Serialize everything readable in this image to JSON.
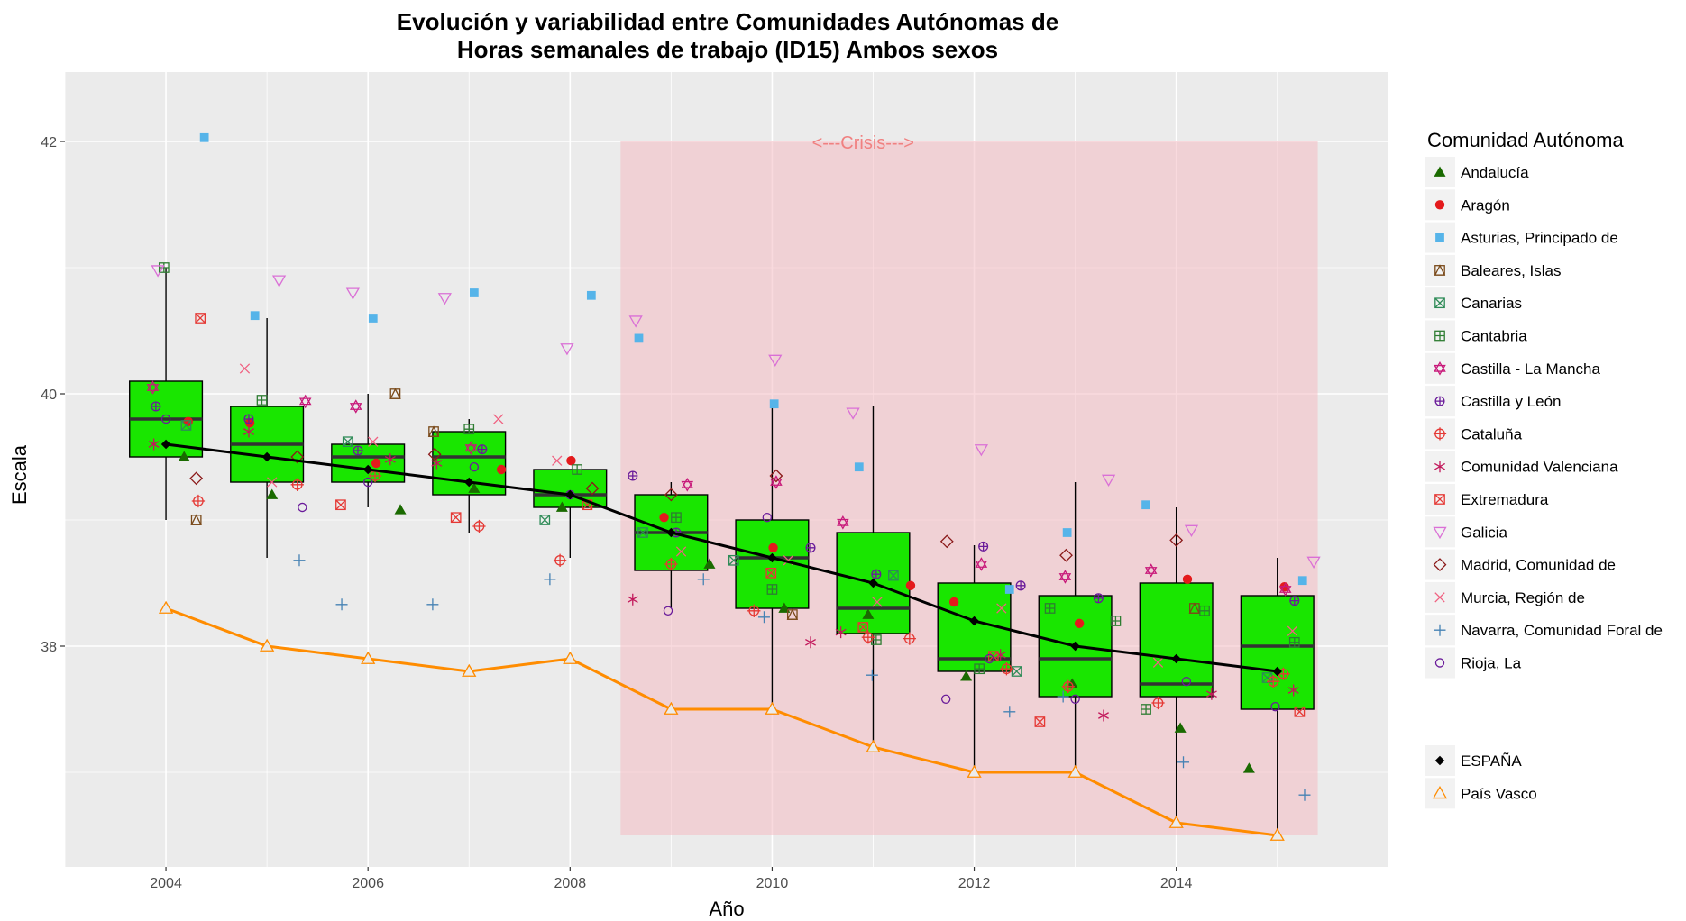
{
  "chart_data": {
    "type": "box",
    "title": "Evolución y variabilidad entre Comunidades Autónomas de",
    "subtitle": "Horas semanales de trabajo (ID15) Ambos sexos",
    "xlabel": "Año",
    "ylabel": "Escala",
    "xlim": [
      2003.0,
      2016.1
    ],
    "ylim": [
      36.25,
      42.55
    ],
    "x_ticks": [
      2004,
      2006,
      2008,
      2010,
      2012,
      2014
    ],
    "y_ticks": [
      38,
      40,
      42
    ],
    "grid": true,
    "legend_position": "right",
    "annotation": {
      "text": "<---Crisis--->",
      "x": 2010.9,
      "y": 42.0,
      "color": "#f08080"
    },
    "crisis_period": {
      "x_start": 2008.5,
      "x_end": 2015.4,
      "y_start": 36.5,
      "y_end": 42.0,
      "color": "#f4bcc2"
    },
    "boxes": [
      {
        "x": 2004,
        "min": 39.0,
        "q1": 39.5,
        "median": 39.8,
        "q3": 40.1,
        "max": 41.0
      },
      {
        "x": 2005,
        "min": 38.7,
        "q1": 39.3,
        "median": 39.6,
        "q3": 39.9,
        "max": 40.6
      },
      {
        "x": 2006,
        "min": 39.1,
        "q1": 39.3,
        "median": 39.5,
        "q3": 39.6,
        "max": 40.0
      },
      {
        "x": 2007,
        "min": 38.9,
        "q1": 39.2,
        "median": 39.5,
        "q3": 39.7,
        "max": 39.8
      },
      {
        "x": 2008,
        "min": 38.7,
        "q1": 39.1,
        "median": 39.2,
        "q3": 39.4,
        "max": 39.4
      },
      {
        "x": 2009,
        "min": 38.3,
        "q1": 38.6,
        "median": 38.9,
        "q3": 39.2,
        "max": 39.3
      },
      {
        "x": 2010,
        "min": 37.5,
        "q1": 38.3,
        "median": 38.7,
        "q3": 39.0,
        "max": 39.9
      },
      {
        "x": 2011,
        "min": 37.2,
        "q1": 38.1,
        "median": 38.3,
        "q3": 38.9,
        "max": 39.9
      },
      {
        "x": 2012,
        "min": 37.0,
        "q1": 37.8,
        "median": 37.9,
        "q3": 38.5,
        "max": 38.8
      },
      {
        "x": 2013,
        "min": 37.0,
        "q1": 37.6,
        "median": 37.9,
        "q3": 38.4,
        "max": 39.3
      },
      {
        "x": 2014,
        "min": 36.6,
        "q1": 37.6,
        "median": 37.7,
        "q3": 38.5,
        "max": 39.1
      },
      {
        "x": 2015,
        "min": 36.5,
        "q1": 37.5,
        "median": 38.0,
        "q3": 38.4,
        "max": 38.7
      }
    ],
    "box_fill": "#19e600",
    "series": [
      {
        "name": "ESPAÑA",
        "color": "#000000",
        "marker": "diamond",
        "x": [
          2004,
          2005,
          2006,
          2007,
          2008,
          2009,
          2010,
          2011,
          2012,
          2013,
          2014,
          2015
        ],
        "y": [
          39.6,
          39.5,
          39.4,
          39.3,
          39.2,
          38.9,
          38.7,
          38.5,
          38.2,
          38.0,
          37.9,
          37.8
        ]
      },
      {
        "name": "País Vasco",
        "color": "#ff8c00",
        "marker": "triangle-open",
        "x": [
          2004,
          2005,
          2006,
          2007,
          2008,
          2009,
          2010,
          2011,
          2012,
          2013,
          2014,
          2015
        ],
        "y": [
          38.3,
          38.0,
          37.9,
          37.8,
          37.9,
          37.5,
          37.5,
          37.2,
          37.0,
          37.0,
          36.6,
          36.5
        ]
      }
    ],
    "regions": [
      {
        "name": "Andalucía",
        "color": "#1a6a00",
        "marker": "triangle-filled",
        "x": [
          2004.18,
          2005.05,
          2006.32,
          2007.05,
          2007.92,
          2009.38,
          2010.12,
          2010.95,
          2011.92,
          2012.97,
          2014.04,
          2014.72
        ],
        "y": [
          39.5,
          39.2,
          39.08,
          39.25,
          39.1,
          38.65,
          38.3,
          38.25,
          37.76,
          37.7,
          37.35,
          37.03
        ]
      },
      {
        "name": "Aragón",
        "color": "#e41a1c",
        "marker": "circle-filled",
        "x": [
          2004.22,
          2004.83,
          2006.08,
          2007.32,
          2008.01,
          2008.93,
          2010.01,
          2011.37,
          2011.8,
          2013.04,
          2014.11,
          2015.07
        ],
        "y": [
          39.78,
          39.77,
          39.45,
          39.4,
          39.47,
          39.02,
          38.78,
          38.48,
          38.35,
          38.18,
          38.53,
          38.47
        ]
      },
      {
        "name": "Asturias, Principado de",
        "color": "#56b4e9",
        "marker": "square-filled",
        "x": [
          2004.38,
          2004.88,
          2006.05,
          2007.05,
          2008.21,
          2008.68,
          2010.02,
          2010.86,
          2012.35,
          2012.92,
          2013.7,
          2015.25
        ],
        "y": [
          42.03,
          40.62,
          40.6,
          40.8,
          40.78,
          40.44,
          39.92,
          39.42,
          38.45,
          38.9,
          39.12,
          38.52
        ]
      },
      {
        "name": "Baleares, Islas",
        "color": "#7a4a1a",
        "marker": "square-triangle",
        "x": [
          2004.3,
          2006.27,
          2006.65,
          2010.2,
          2014.18
        ],
        "y": [
          39.0,
          40.0,
          39.7,
          38.25,
          38.3
        ]
      },
      {
        "name": "Canarias",
        "color": "#2e8b57",
        "marker": "square-x",
        "x": [
          2004.2,
          2005.8,
          2007.75,
          2008.72,
          2009.62,
          2011.2,
          2012.42,
          2014.9
        ],
        "y": [
          39.75,
          39.62,
          39.0,
          38.9,
          38.68,
          38.56,
          37.8,
          37.75
        ]
      },
      {
        "name": "Cantabria",
        "color": "#2e7d32",
        "marker": "square-plus",
        "x": [
          2003.98,
          2004.95,
          2007.0,
          2008.07,
          2009.05,
          2010.0,
          2011.03,
          2012.05,
          2012.75,
          2013.4,
          2013.7,
          2014.28,
          2015.17
        ],
        "y": [
          41.0,
          39.95,
          39.72,
          39.4,
          39.02,
          38.45,
          38.05,
          37.82,
          38.3,
          38.2,
          37.5,
          38.28,
          38.03
        ]
      },
      {
        "name": "Castilla - La Mancha",
        "color": "#c8197a",
        "marker": "star-of-david",
        "x": [
          2003.87,
          2005.38,
          2005.88,
          2007.02,
          2009.16,
          2010.04,
          2010.7,
          2012.07,
          2012.9,
          2013.75,
          2015.08
        ],
        "y": [
          40.05,
          39.94,
          39.9,
          39.57,
          39.28,
          39.3,
          38.98,
          38.65,
          38.55,
          38.6,
          38.45
        ]
      },
      {
        "name": "Castilla y León",
        "color": "#6a1b9a",
        "marker": "circle-plus",
        "x": [
          2003.9,
          2004.82,
          2005.9,
          2007.13,
          2008.62,
          2009.05,
          2010.38,
          2011.03,
          2012.09,
          2012.46,
          2013.23,
          2015.17
        ],
        "y": [
          39.9,
          39.8,
          39.55,
          39.56,
          39.35,
          38.9,
          38.78,
          38.57,
          38.79,
          38.48,
          38.38,
          38.36
        ]
      },
      {
        "name": "Cataluña",
        "color": "#e53935",
        "marker": "circle-cross",
        "x": [
          2004.32,
          2005.3,
          2006.07,
          2007.1,
          2007.9,
          2009.0,
          2009.82,
          2010.95,
          2011.36,
          2012.32,
          2012.93,
          2013.82,
          2014.96,
          2015.06
        ],
        "y": [
          39.15,
          39.28,
          39.35,
          38.95,
          38.68,
          38.65,
          38.28,
          38.07,
          38.06,
          37.82,
          37.68,
          37.55,
          37.72,
          37.78
        ]
      },
      {
        "name": "Comunidad Valenciana",
        "color": "#c2185b",
        "marker": "asterisk",
        "x": [
          2003.88,
          2004.82,
          2006.22,
          2006.68,
          2008.62,
          2010.38,
          2010.68,
          2012.26,
          2013.28,
          2014.35,
          2015.16
        ],
        "y": [
          39.6,
          39.7,
          39.48,
          39.45,
          38.37,
          38.03,
          38.11,
          37.93,
          37.45,
          37.62,
          37.65
        ]
      },
      {
        "name": "Extremadura",
        "color": "#e53935",
        "marker": "square-x",
        "x": [
          2004.34,
          2005.73,
          2006.87,
          2008.17,
          2009.99,
          2010.9,
          2012.19,
          2012.65,
          2015.22
        ],
        "y": [
          40.6,
          39.12,
          39.02,
          39.12,
          38.58,
          38.15,
          37.92,
          37.4,
          37.48
        ]
      },
      {
        "name": "Galicia",
        "color": "#da70d6",
        "marker": "triangle-down-open",
        "x": [
          2003.92,
          2005.12,
          2005.85,
          2006.76,
          2007.97,
          2008.65,
          2010.03,
          2010.8,
          2012.07,
          2013.33,
          2014.15,
          2015.36
        ],
        "y": [
          40.98,
          40.9,
          40.8,
          40.76,
          40.36,
          40.58,
          40.27,
          39.85,
          39.56,
          39.32,
          38.92,
          38.67
        ]
      },
      {
        "name": "Madrid, Comunidad de",
        "color": "#8b1a1a",
        "marker": "diamond-open",
        "x": [
          2004.3,
          2005.3,
          2006.66,
          2008.22,
          2009.0,
          2010.04,
          2011.73,
          2012.91,
          2014.0
        ],
        "y": [
          39.33,
          39.5,
          39.52,
          39.25,
          39.2,
          39.35,
          38.83,
          38.72,
          38.84
        ]
      },
      {
        "name": "Murcia, Región de",
        "color": "#f06080",
        "marker": "x",
        "x": [
          2004.78,
          2005.05,
          2006.05,
          2007.29,
          2007.87,
          2009.1,
          2010.16,
          2011.04,
          2012.27,
          2013.82,
          2015.15
        ],
        "y": [
          40.2,
          39.3,
          39.62,
          39.8,
          39.47,
          38.75,
          38.68,
          38.35,
          38.3,
          37.87,
          38.12
        ]
      },
      {
        "name": "Navarra, Comunidad Foral de",
        "color": "#4682b4",
        "marker": "plus",
        "x": [
          2005.32,
          2005.74,
          2006.64,
          2007.8,
          2009.32,
          2009.92,
          2010.99,
          2012.35,
          2012.88,
          2014.07,
          2015.27
        ],
        "y": [
          38.68,
          38.33,
          38.33,
          38.53,
          38.53,
          38.23,
          37.77,
          37.48,
          37.6,
          37.08,
          36.82
        ]
      },
      {
        "name": "Rioja, La",
        "color": "#6a1b9a",
        "marker": "circle-open",
        "x": [
          2004.0,
          2005.35,
          2006.0,
          2007.05,
          2008.0,
          2008.97,
          2009.95,
          2011.72,
          2012.15,
          2013.0,
          2014.1,
          2014.98
        ],
        "y": [
          39.8,
          39.1,
          39.3,
          39.42,
          39.2,
          38.28,
          39.02,
          37.58,
          37.9,
          37.58,
          37.72,
          37.52
        ]
      }
    ],
    "legend_title": "Comunidad Autónoma",
    "legend_items": [
      "Andalucía",
      "Aragón",
      "Asturias, Principado de",
      "Baleares, Islas",
      "Canarias",
      "Cantabria",
      "Castilla - La Mancha",
      "Castilla y León",
      "Cataluña",
      "Comunidad Valenciana",
      "Extremadura",
      "Galicia",
      "Madrid, Comunidad de",
      "Murcia, Región de",
      "Navarra, Comunidad Foral de",
      "Rioja, La"
    ],
    "legend2_items": [
      "ESPAÑA",
      "País Vasco"
    ]
  }
}
